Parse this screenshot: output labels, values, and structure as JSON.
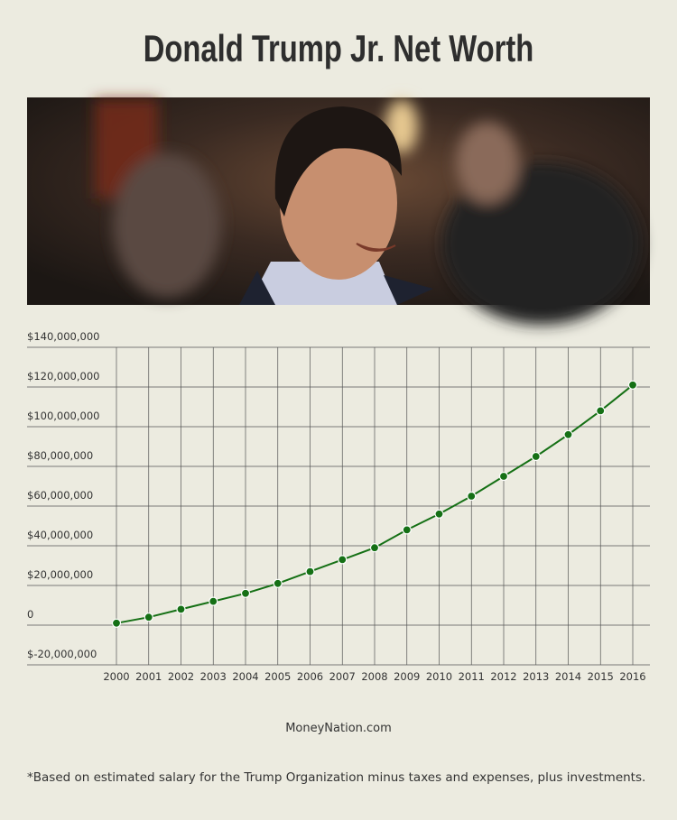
{
  "chart_data": {
    "type": "line",
    "title": "Donald Trump Jr. Net Worth",
    "categories": [
      "2000",
      "2001",
      "2002",
      "2003",
      "2004",
      "2005",
      "2006",
      "2007",
      "2008",
      "2009",
      "2010",
      "2011",
      "2012",
      "2013",
      "2014",
      "2015",
      "2016"
    ],
    "values": [
      1000000,
      4000000,
      8000000,
      12000000,
      16000000,
      21000000,
      27000000,
      33000000,
      39000000,
      48000000,
      56000000,
      65000000,
      75000000,
      85000000,
      96000000,
      108000000,
      121000000
    ],
    "color": "#157015",
    "ylim": [
      -20000000,
      140000000
    ],
    "yticks": [
      {
        "value": -20000000,
        "label": "$-20,000,000"
      },
      0,
      {
        "value": 20000000,
        "label": "$20,000,000"
      },
      {
        "value": 40000000,
        "label": "$40,000,000"
      },
      {
        "value": 60000000,
        "label": "$60,000,000"
      },
      {
        "value": 80000000,
        "label": "$80,000,000"
      },
      {
        "value": 100000000,
        "label": "$100,000,000"
      },
      {
        "value": 120000000,
        "label": "$120,000,000"
      },
      {
        "value": 140000000,
        "label": "$140,000,000"
      }
    ],
    "grid": true,
    "source": "MoneyNation.com",
    "footnote": "*Based on estimated salary for the Trump Organization minus taxes and expenses, plus investments."
  }
}
